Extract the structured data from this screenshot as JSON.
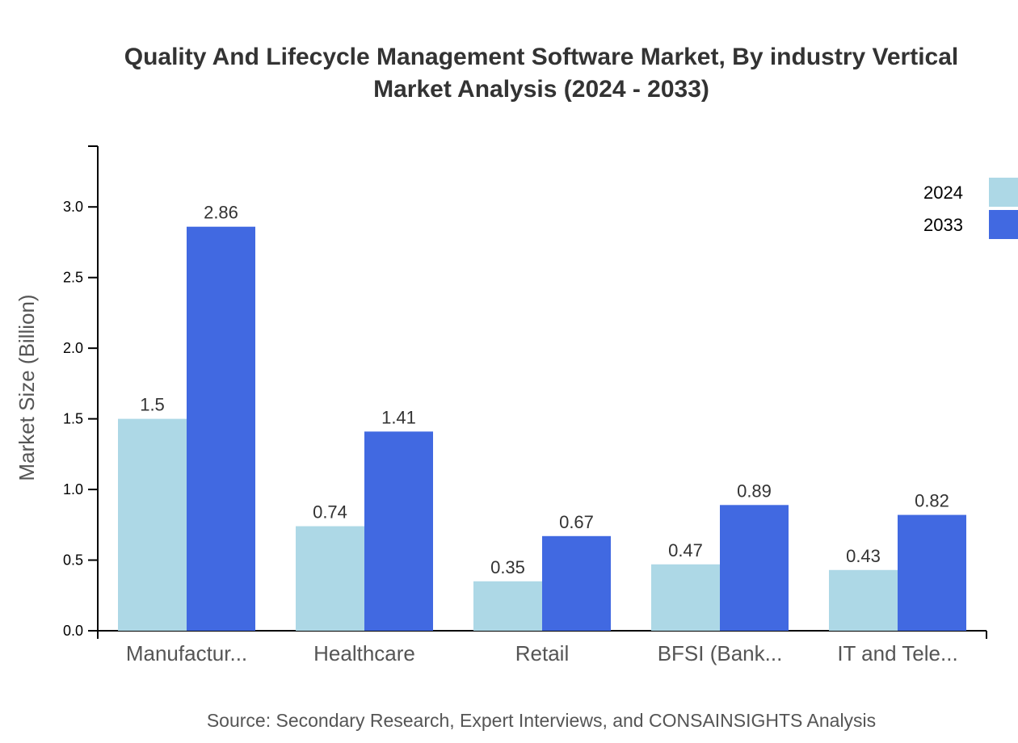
{
  "chart_data": {
    "type": "bar",
    "title": "Quality And Lifecycle Management Software Market, By industry Vertical",
    "subtitle": "Market Analysis (2024 - 2033)",
    "ylabel": "Market Size (Billion)",
    "xlabel": "",
    "ylim": [
      0,
      3.43
    ],
    "yticks": [
      "0.0",
      "0.5",
      "1.0",
      "1.5",
      "2.0",
      "2.5",
      "3.0"
    ],
    "categories": [
      "Manufactur...",
      "Healthcare",
      "Retail",
      "BFSI (Bank...",
      "IT and Tele..."
    ],
    "series": [
      {
        "name": "2024",
        "color": "#add8e6",
        "values": [
          1.5,
          0.74,
          0.35,
          0.47,
          0.43
        ],
        "labels": [
          "1.5",
          "0.74",
          "0.35",
          "0.47",
          "0.43"
        ]
      },
      {
        "name": "2033",
        "color": "#4169e1",
        "values": [
          2.86,
          1.41,
          0.67,
          0.89,
          0.82
        ],
        "labels": [
          "2.86",
          "1.41",
          "0.67",
          "0.89",
          "0.82"
        ]
      }
    ],
    "legend": "top-right",
    "grid": false,
    "source": "Source: Secondary Research, Expert Interviews, and CONSAINSIGHTS Analysis"
  }
}
